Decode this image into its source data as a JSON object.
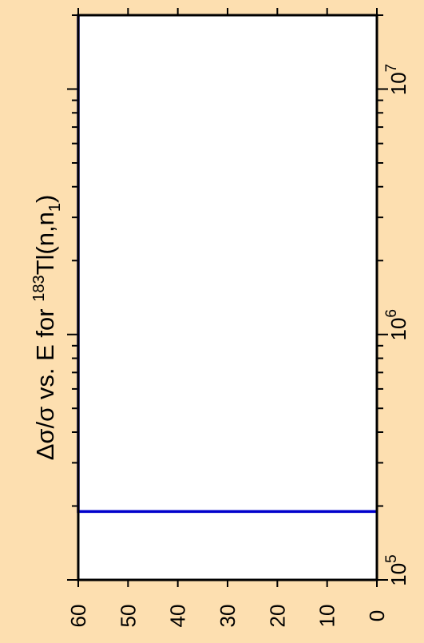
{
  "chart_data": {
    "type": "line",
    "title_parts": {
      "prefix": "Δσ/σ vs. E for ",
      "mass_number": "183",
      "element": "Tl(n,n",
      "subscript": "1",
      "suffix": ")"
    },
    "xlabel": "",
    "ylabel": "",
    "x_scale": "log",
    "xlim": [
      100000,
      20000000
    ],
    "ylim": [
      0,
      60
    ],
    "x_ticks": [
      {
        "value": 100000,
        "base": "10",
        "exp": "5"
      },
      {
        "value": 1000000,
        "base": "10",
        "exp": "6"
      },
      {
        "value": 10000000,
        "base": "10",
        "exp": "7"
      }
    ],
    "y_ticks": [
      60,
      50,
      40,
      30,
      20,
      10,
      0
    ],
    "series": [
      {
        "color": "#0000cc",
        "x": [
          190000,
          190000,
          20000000
        ],
        "y": [
          0,
          60,
          60
        ]
      }
    ],
    "colors": {
      "background": "#fddfb0",
      "plot_area": "#ffffff",
      "line": "#0000cc",
      "axis": "#000000"
    },
    "orientation": "rotated 90 degrees counter-clockwise",
    "grid": false
  }
}
